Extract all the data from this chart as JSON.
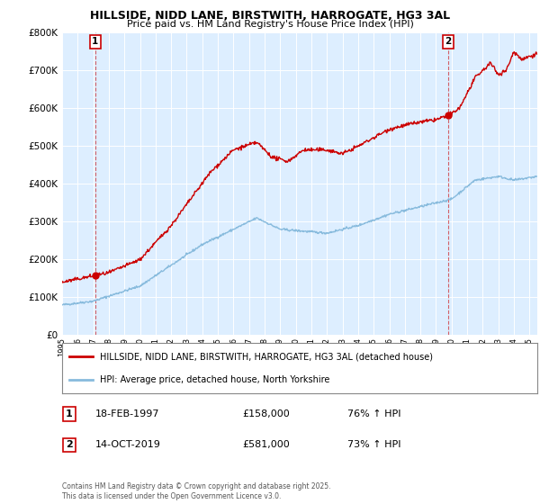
{
  "title": "HILLSIDE, NIDD LANE, BIRSTWITH, HARROGATE, HG3 3AL",
  "subtitle": "Price paid vs. HM Land Registry's House Price Index (HPI)",
  "legend_line1": "HILLSIDE, NIDD LANE, BIRSTWITH, HARROGATE, HG3 3AL (detached house)",
  "legend_line2": "HPI: Average price, detached house, North Yorkshire",
  "sale1_label": "1",
  "sale1_date": "18-FEB-1997",
  "sale1_price": "£158,000",
  "sale1_hpi": "76% ↑ HPI",
  "sale2_label": "2",
  "sale2_date": "14-OCT-2019",
  "sale2_price": "£581,000",
  "sale2_hpi": "73% ↑ HPI",
  "copyright": "Contains HM Land Registry data © Crown copyright and database right 2025.\nThis data is licensed under the Open Government Licence v3.0.",
  "sale1_x": 1997.13,
  "sale1_y": 158000,
  "sale2_x": 2019.79,
  "sale2_y": 581000,
  "bg_color": "#ddeeff",
  "red_color": "#cc0000",
  "blue_color": "#88bbdd",
  "grid_color": "#ffffff",
  "ylim": [
    0,
    800000
  ],
  "xlim": [
    1995.0,
    2025.5
  ],
  "yticks": [
    0,
    100000,
    200000,
    300000,
    400000,
    500000,
    600000,
    700000,
    800000
  ],
  "xticks": [
    1995,
    1996,
    1997,
    1998,
    1999,
    2000,
    2001,
    2002,
    2003,
    2004,
    2005,
    2006,
    2007,
    2008,
    2009,
    2010,
    2011,
    2012,
    2013,
    2014,
    2015,
    2016,
    2017,
    2018,
    2019,
    2020,
    2021,
    2022,
    2023,
    2024,
    2025
  ]
}
